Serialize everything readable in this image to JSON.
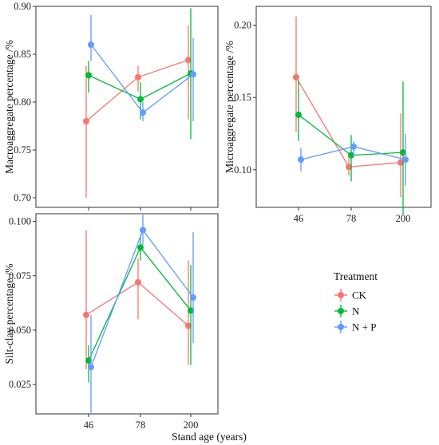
{
  "chart_data": [
    {
      "type": "line",
      "panel": "top-left",
      "ylabel": "Macroaggregate percentage /%",
      "categories": [
        "46",
        "78",
        "200"
      ],
      "ylim": [
        0.69,
        0.9
      ],
      "yticks": [
        "0.70",
        "0.75",
        "0.80",
        "0.85",
        "0.90"
      ],
      "series": [
        {
          "name": "CK",
          "values": [
            0.78,
            0.826,
            0.844
          ],
          "lower": [
            0.7,
            0.811,
            0.782
          ],
          "upper": [
            0.838,
            0.838,
            0.88
          ]
        },
        {
          "name": "N",
          "values": [
            0.828,
            0.803,
            0.83
          ],
          "lower": [
            0.81,
            0.782,
            0.761
          ],
          "upper": [
            0.843,
            0.821,
            0.898
          ]
        },
        {
          "name": "N + P",
          "values": [
            0.86,
            0.789,
            0.829
          ],
          "lower": [
            0.843,
            0.78,
            0.78
          ],
          "upper": [
            0.891,
            0.8,
            0.867
          ]
        }
      ]
    },
    {
      "type": "line",
      "panel": "top-right",
      "ylabel": "Microaggregate percentage /%",
      "xlabel_ticks": true,
      "categories": [
        "46",
        "78",
        "200"
      ],
      "ylim": [
        0.074,
        0.213
      ],
      "yticks": [
        "0.10",
        "0.15",
        "0.20"
      ],
      "series": [
        {
          "name": "CK",
          "values": [
            0.164,
            0.102,
            0.105
          ],
          "lower": [
            0.126,
            0.096,
            0.081
          ],
          "upper": [
            0.206,
            0.112,
            0.139
          ]
        },
        {
          "name": "N",
          "values": [
            0.138,
            0.11,
            0.112
          ],
          "lower": [
            0.12,
            0.092,
            0.069
          ],
          "upper": [
            0.162,
            0.124,
            0.161
          ]
        },
        {
          "name": "N + P",
          "values": [
            0.107,
            0.116,
            0.107
          ],
          "lower": [
            0.099,
            0.109,
            0.089
          ],
          "upper": [
            0.115,
            0.12,
            0.125
          ]
        }
      ]
    },
    {
      "type": "line",
      "panel": "bottom-left",
      "ylabel": "Silt-clay percentage /%",
      "categories": [
        "46",
        "78",
        "200"
      ],
      "ylim": [
        0.0115,
        0.1035
      ],
      "yticks": [
        "0.025",
        "0.050",
        "0.075",
        "0.100"
      ],
      "series": [
        {
          "name": "CK",
          "values": [
            0.057,
            0.072,
            0.052
          ],
          "lower": [
            0.032,
            0.055,
            0.034
          ],
          "upper": [
            0.096,
            0.083,
            0.082
          ]
        },
        {
          "name": "N",
          "values": [
            0.036,
            0.088,
            0.059
          ],
          "lower": [
            0.026,
            0.082,
            0.034
          ],
          "upper": [
            0.043,
            0.094,
            0.08
          ]
        },
        {
          "name": "N + P",
          "values": [
            0.033,
            0.096,
            0.065
          ],
          "lower": [
            0.012,
            0.089,
            0.044
          ],
          "upper": [
            0.057,
            0.103,
            0.095
          ]
        }
      ]
    }
  ],
  "colors": {
    "CK": "#F8766D",
    "N": "#00BA38",
    "N + P": "#619CFF"
  },
  "xlabel": "Stand age (years)",
  "legend": {
    "title": "Treatment",
    "entries": [
      "CK",
      "N",
      "N + P"
    ]
  }
}
